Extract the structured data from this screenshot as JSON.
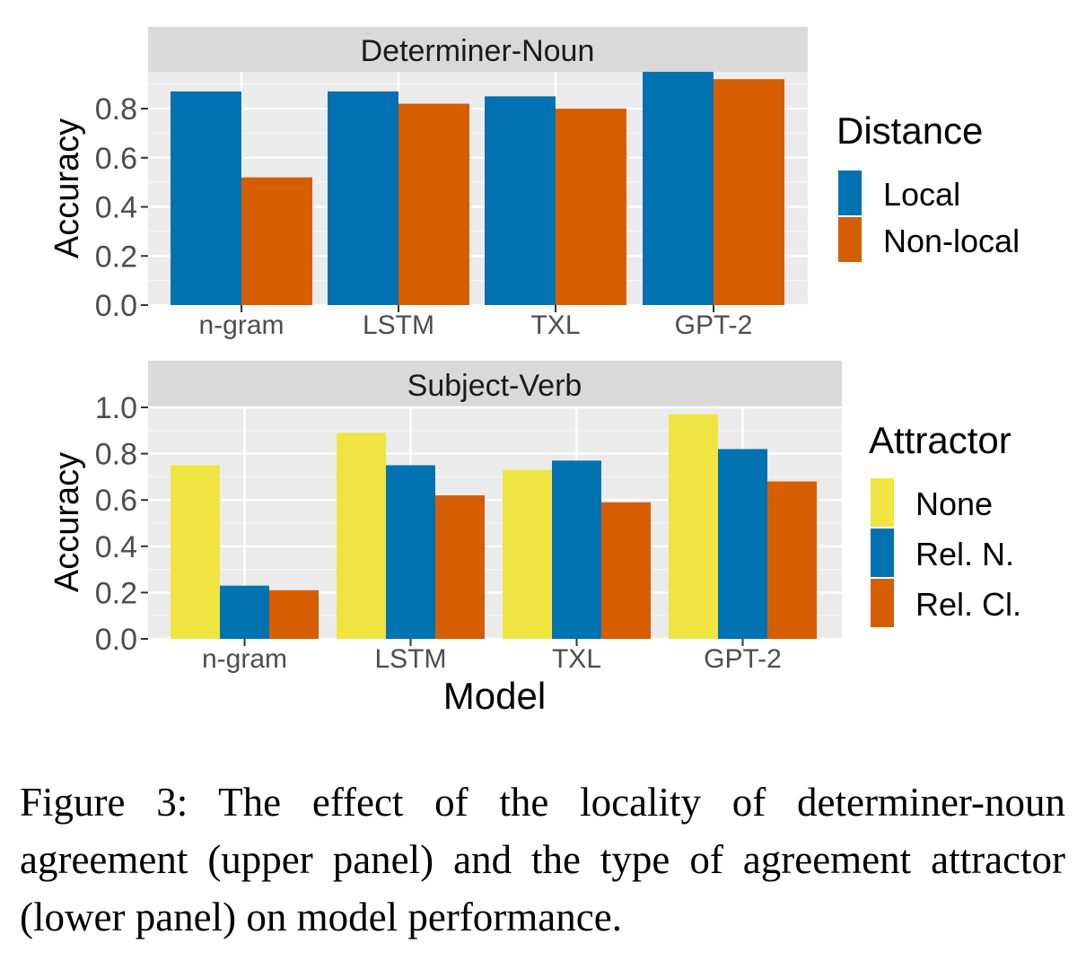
{
  "chart_data": [
    {
      "type": "bar",
      "title": "",
      "panel_strip": "Determiner-Noun",
      "categories": [
        "n-gram",
        "LSTM",
        "TXL",
        "GPT-2"
      ],
      "legend_title": "Distance",
      "legend_position": "right",
      "series": [
        {
          "name": "Local",
          "values": [
            0.87,
            0.87,
            0.85,
            0.95
          ],
          "color": "#0072B2"
        },
        {
          "name": "Non-local",
          "values": [
            0.52,
            0.82,
            0.8,
            0.92
          ],
          "color": "#D55E00"
        }
      ],
      "xlabel": "",
      "ylabel": "Accuracy",
      "ylim": [
        0,
        0.95
      ],
      "yticks": [
        0.0,
        0.2,
        0.4,
        0.6,
        0.8
      ],
      "ytick_labels": [
        "0.0",
        "0.2",
        "0.4",
        "0.6",
        "0.8"
      ],
      "grid": true
    },
    {
      "type": "bar",
      "title": "",
      "panel_strip": "Subject-Verb",
      "categories": [
        "n-gram",
        "LSTM",
        "TXL",
        "GPT-2"
      ],
      "legend_title": "Attractor",
      "legend_position": "right",
      "series": [
        {
          "name": "None",
          "values": [
            0.75,
            0.89,
            0.73,
            0.97
          ],
          "color": "#F0E442"
        },
        {
          "name": "Rel. N.",
          "values": [
            0.23,
            0.75,
            0.77,
            0.82
          ],
          "color": "#0072B2"
        },
        {
          "name": "Rel. Cl.",
          "values": [
            0.21,
            0.62,
            0.59,
            0.68
          ],
          "color": "#D55E00"
        }
      ],
      "xlabel": "Model",
      "ylabel": "Accuracy",
      "ylim": [
        0,
        1.0
      ],
      "yticks": [
        0.0,
        0.2,
        0.4,
        0.6,
        0.8,
        1.0
      ],
      "ytick_labels": [
        "0.0",
        "0.2",
        "0.4",
        "0.6",
        "0.8",
        "1.0"
      ],
      "grid": true
    }
  ],
  "caption": "Figure 3: The effect of the locality of determiner-noun agreement (upper panel) and the type of agreement attractor (lower panel) on model performance."
}
